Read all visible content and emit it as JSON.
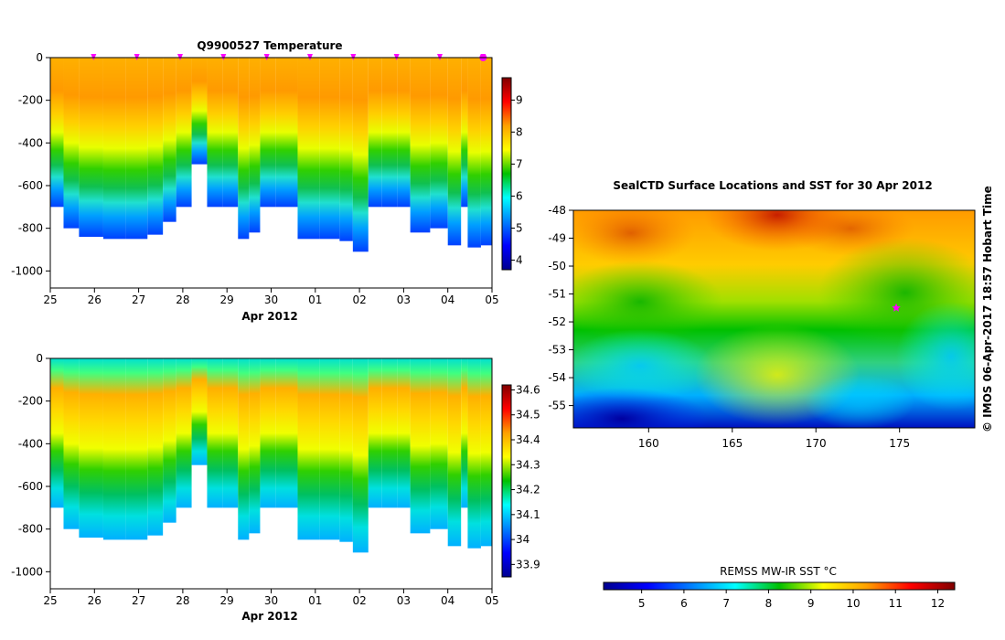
{
  "chart_data": [
    {
      "type": "heatmap",
      "title": "Q9900527  Temperature",
      "xlabel": "Apr 2012",
      "ylabel": "",
      "x_tick_labels": [
        "25",
        "26",
        "27",
        "28",
        "29",
        "30",
        "01",
        "02",
        "03",
        "04",
        "05"
      ],
      "y_ticks": [
        0,
        -200,
        -400,
        -600,
        -800,
        -1000
      ],
      "ylim": [
        -1080,
        0
      ],
      "colorbar_ticks": [
        4,
        5,
        6,
        7,
        8,
        9
      ],
      "colorbar_range": [
        3.7,
        9.7
      ],
      "profile_dives": [
        {
          "x": 0.0,
          "bottom": -700
        },
        {
          "x": 0.3,
          "bottom": -800
        },
        {
          "x": 0.65,
          "bottom": -840
        },
        {
          "x": 1.2,
          "bottom": -850
        },
        {
          "x": 1.7,
          "bottom": -850
        },
        {
          "x": 2.2,
          "bottom": -830
        },
        {
          "x": 2.55,
          "bottom": -770
        },
        {
          "x": 2.85,
          "bottom": -700
        },
        {
          "x": 3.2,
          "bottom": -500
        },
        {
          "x": 3.55,
          "bottom": -700
        },
        {
          "x": 3.9,
          "bottom": -700
        },
        {
          "x": 4.25,
          "bottom": -850
        },
        {
          "x": 4.5,
          "bottom": -820
        },
        {
          "x": 4.75,
          "bottom": -700
        },
        {
          "x": 5.1,
          "bottom": -700
        },
        {
          "x": 5.6,
          "bottom": -850
        },
        {
          "x": 6.1,
          "bottom": -850
        },
        {
          "x": 6.55,
          "bottom": -860
        },
        {
          "x": 6.85,
          "bottom": -910
        },
        {
          "x": 7.2,
          "bottom": -700
        },
        {
          "x": 7.5,
          "bottom": -700
        },
        {
          "x": 7.85,
          "bottom": -700
        },
        {
          "x": 8.15,
          "bottom": -820
        },
        {
          "x": 8.6,
          "bottom": -800
        },
        {
          "x": 9.0,
          "bottom": -880
        },
        {
          "x": 9.3,
          "bottom": -700
        },
        {
          "x": 9.45,
          "bottom": -890
        },
        {
          "x": 9.75,
          "bottom": -880
        }
      ],
      "surface_markers_x": [
        1,
        2,
        3,
        4,
        5,
        6,
        7,
        8,
        9,
        10
      ],
      "highlight_marker_x": 10
    },
    {
      "type": "heatmap",
      "title": "",
      "xlabel": "Apr 2012",
      "ylabel": "",
      "x_tick_labels": [
        "25",
        "26",
        "27",
        "28",
        "29",
        "30",
        "01",
        "02",
        "03",
        "04",
        "05"
      ],
      "y_ticks": [
        0,
        -200,
        -400,
        -600,
        -800,
        -1000
      ],
      "ylim": [
        -1080,
        0
      ],
      "colorbar_ticks": [
        33.9,
        34,
        34.1,
        34.2,
        34.3,
        34.4,
        34.5,
        34.6
      ],
      "colorbar_range": [
        33.85,
        34.62
      ]
    },
    {
      "type": "heatmap",
      "title": "SealCTD Surface Locations and SST for 30 Apr 2012",
      "xlabel": "",
      "ylabel": "",
      "x_ticks": [
        160,
        165,
        170,
        175
      ],
      "xlim": [
        155.5,
        179.5
      ],
      "y_ticks": [
        -48,
        -49,
        -50,
        -51,
        -52,
        -53,
        -54,
        -55
      ],
      "ylim": [
        -55.8,
        -48
      ],
      "colorbar_label": "REMSS MW-IR SST °C",
      "colorbar_ticks": [
        5,
        6,
        7,
        8,
        9,
        10,
        11,
        12
      ],
      "colorbar_range": [
        4.1,
        12.4
      ],
      "surface_location": {
        "lon": 174.8,
        "lat": -51.5
      }
    }
  ],
  "credit": "© IMOS 06-Apr-2017 18:57 Hobart Time",
  "colors": {
    "jet": [
      "#00008f",
      "#0000ff",
      "#00ffff",
      "#00c000",
      "#ffff00",
      "#ffa000",
      "#ff0000",
      "#800000"
    ],
    "marker": "#ff00ff"
  }
}
